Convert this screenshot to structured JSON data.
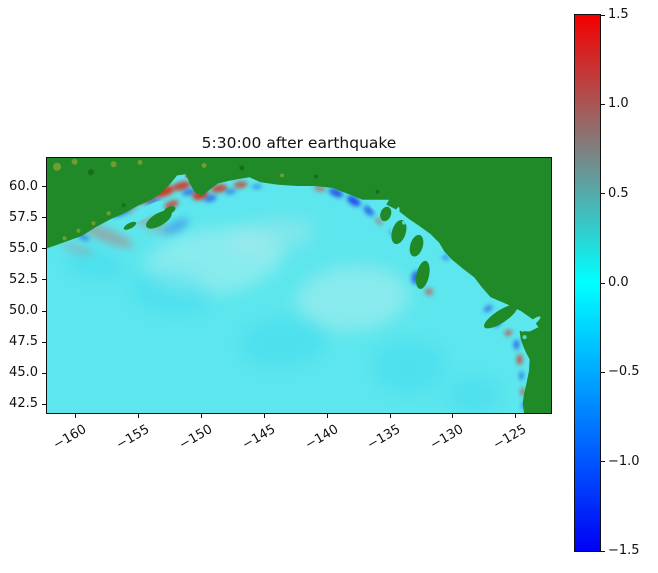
{
  "chart_data": {
    "type": "heatmap",
    "title": "5:30:00 after earthquake",
    "xlim": [
      -162.3,
      -122.2
    ],
    "ylim": [
      41.8,
      62.3
    ],
    "x_ticks": [
      {
        "v": -160,
        "label": "−160"
      },
      {
        "v": -155,
        "label": "−155"
      },
      {
        "v": -150,
        "label": "−150"
      },
      {
        "v": -145,
        "label": "−145"
      },
      {
        "v": -140,
        "label": "−140"
      },
      {
        "v": -135,
        "label": "−135"
      },
      {
        "v": -130,
        "label": "−130"
      },
      {
        "v": -125,
        "label": "−125"
      }
    ],
    "y_ticks": [
      {
        "v": 60.0,
        "label": "60.0"
      },
      {
        "v": 57.5,
        "label": "57.5"
      },
      {
        "v": 55.0,
        "label": "55.0"
      },
      {
        "v": 52.5,
        "label": "52.5"
      },
      {
        "v": 50.0,
        "label": "50.0"
      },
      {
        "v": 47.5,
        "label": "47.5"
      },
      {
        "v": 45.0,
        "label": "45.0"
      },
      {
        "v": 42.5,
        "label": "42.5"
      }
    ],
    "colorbar": {
      "vmin": -1.5,
      "vmax": 1.5,
      "ticks": [
        {
          "v": 1.5,
          "label": "1.5"
        },
        {
          "v": 1.0,
          "label": "1.0"
        },
        {
          "v": 0.5,
          "label": "0.5"
        },
        {
          "v": 0.0,
          "label": "0.0"
        },
        {
          "v": -0.5,
          "label": "−0.5"
        },
        {
          "v": -1.0,
          "label": "−1.0"
        },
        {
          "v": -1.5,
          "label": "−1.5"
        }
      ],
      "stops": [
        {
          "v": 1.5,
          "c": "#f40000"
        },
        {
          "v": 1.0,
          "c": "#aa5555"
        },
        {
          "v": 0.5,
          "c": "#55aaaa"
        },
        {
          "v": 0.0,
          "c": "#00ffff"
        },
        {
          "v": -0.5,
          "c": "#00aaff"
        },
        {
          "v": -1.0,
          "c": "#0055ff"
        },
        {
          "v": -1.5,
          "c": "#0000f4"
        }
      ]
    },
    "colors": {
      "ocean": "#5de6ed",
      "land": "#218a28",
      "positive": "#e02818",
      "negative": "#1f35e6"
    },
    "map": {
      "coastline": [
        [
          -162.3,
          62.3
        ],
        [
          -122.2,
          62.3
        ],
        [
          -122.2,
          41.8
        ],
        [
          -124.35,
          41.8
        ],
        [
          -124.45,
          42.6
        ],
        [
          -124.35,
          43.3
        ],
        [
          -124.15,
          44.2
        ],
        [
          -123.95,
          45.2
        ],
        [
          -123.9,
          46.1
        ],
        [
          -124.3,
          46.9
        ],
        [
          -124.6,
          47.7
        ],
        [
          -124.7,
          48.4
        ],
        [
          -123.9,
          48.35
        ],
        [
          -123.2,
          48.7
        ],
        [
          -123.6,
          49.3
        ],
        [
          -124.6,
          50.0
        ],
        [
          -125.7,
          50.55
        ],
        [
          -127.0,
          51.1
        ],
        [
          -127.7,
          51.9
        ],
        [
          -128.3,
          52.7
        ],
        [
          -129.2,
          53.4
        ],
        [
          -130.1,
          54.15
        ],
        [
          -130.7,
          54.8
        ],
        [
          -131.1,
          55.5
        ],
        [
          -131.8,
          56.2
        ],
        [
          -132.7,
          56.85
        ],
        [
          -133.5,
          57.4
        ],
        [
          -134.4,
          58.1
        ],
        [
          -135.3,
          58.55
        ],
        [
          -135.1,
          58.95
        ],
        [
          -136.3,
          58.95
        ],
        [
          -137.2,
          58.95
        ],
        [
          -138.3,
          59.4
        ],
        [
          -139.6,
          59.9
        ],
        [
          -141.0,
          60.05
        ],
        [
          -142.4,
          60.05
        ],
        [
          -143.9,
          60.15
        ],
        [
          -145.3,
          60.35
        ],
        [
          -146.2,
          60.75
        ],
        [
          -147.1,
          60.6
        ],
        [
          -147.9,
          60.45
        ],
        [
          -148.7,
          60.25
        ],
        [
          -149.4,
          59.7
        ],
        [
          -150.0,
          59.25
        ],
        [
          -150.55,
          59.55
        ],
        [
          -150.95,
          60.25
        ],
        [
          -151.25,
          61.0
        ],
        [
          -151.95,
          60.9
        ],
        [
          -152.55,
          60.15
        ],
        [
          -153.25,
          59.45
        ],
        [
          -154.1,
          58.9
        ],
        [
          -155.1,
          58.45
        ],
        [
          -156.2,
          57.85
        ],
        [
          -157.3,
          57.35
        ],
        [
          -158.4,
          56.75
        ],
        [
          -159.5,
          56.05
        ],
        [
          -160.6,
          55.65
        ],
        [
          -161.7,
          55.25
        ],
        [
          -162.3,
          55.05
        ]
      ],
      "water_cuts": [
        {
          "lon": -154.55,
          "lat": 57.9,
          "rx": 1.75,
          "ry": 0.4,
          "rot": -31
        },
        {
          "lon": -123.8,
          "lat": 48.95,
          "rx": 0.95,
          "ry": 0.22,
          "rot": -38
        },
        {
          "lon": -134.6,
          "lat": 57.3,
          "rx": 0.22,
          "ry": 1.1,
          "rot": 15
        },
        {
          "lon": -133.2,
          "lat": 55.9,
          "rx": 0.22,
          "ry": 0.95,
          "rot": 15
        },
        {
          "lon": -136.2,
          "lat": 58.3,
          "rx": 0.5,
          "ry": 0.18,
          "rot": 40
        }
      ],
      "islands": [
        {
          "lon": -153.4,
          "lat": 57.35,
          "rx": 1.15,
          "ry": 0.5,
          "rot": -30
        },
        {
          "lon": -152.55,
          "lat": 58.1,
          "rx": 0.5,
          "ry": 0.28,
          "rot": -25
        },
        {
          "lon": -155.7,
          "lat": 56.85,
          "rx": 0.55,
          "ry": 0.22,
          "rot": -28
        },
        {
          "lon": -134.3,
          "lat": 56.35,
          "rx": 0.55,
          "ry": 1.0,
          "rot": 17
        },
        {
          "lon": -132.9,
          "lat": 55.25,
          "rx": 0.5,
          "ry": 0.9,
          "rot": 17
        },
        {
          "lon": -135.35,
          "lat": 57.8,
          "rx": 0.42,
          "ry": 0.6,
          "rot": 20
        },
        {
          "lon": -132.4,
          "lat": 52.9,
          "rx": 0.5,
          "ry": 1.15,
          "rot": 12
        },
        {
          "lon": -126.2,
          "lat": 49.55,
          "rx": 1.55,
          "ry": 0.5,
          "rot": -33
        }
      ],
      "speckles": [
        {
          "lon": -161.5,
          "lat": 61.6,
          "r": 4,
          "c": "#7fa030"
        },
        {
          "lon": -160.1,
          "lat": 62.0,
          "r": 3,
          "c": "#7fa030"
        },
        {
          "lon": -158.8,
          "lat": 61.15,
          "r": 3,
          "c": "#14691a"
        },
        {
          "lon": -157.0,
          "lat": 61.8,
          "r": 3,
          "c": "#7fa030"
        },
        {
          "lon": -154.9,
          "lat": 61.95,
          "r": 2.5,
          "c": "#7fa030"
        },
        {
          "lon": -159.8,
          "lat": 56.45,
          "r": 2,
          "c": "#7fa030"
        },
        {
          "lon": -158.6,
          "lat": 57.05,
          "r": 2,
          "c": "#7fa030"
        },
        {
          "lon": -157.4,
          "lat": 57.85,
          "r": 2.2,
          "c": "#7fa030"
        },
        {
          "lon": -156.2,
          "lat": 58.5,
          "r": 2,
          "c": "#14691a"
        },
        {
          "lon": -160.9,
          "lat": 55.85,
          "r": 2,
          "c": "#7fa030"
        },
        {
          "lon": -149.8,
          "lat": 61.7,
          "r": 2.5,
          "c": "#7fa030"
        },
        {
          "lon": -146.8,
          "lat": 61.5,
          "r": 2.5,
          "c": "#14691a"
        },
        {
          "lon": -143.6,
          "lat": 60.9,
          "r": 2,
          "c": "#7fa030"
        },
        {
          "lon": -140.9,
          "lat": 60.8,
          "r": 2,
          "c": "#14691a"
        },
        {
          "lon": -136.0,
          "lat": 59.6,
          "r": 2,
          "c": "#14691a"
        },
        {
          "lon": -133.9,
          "lat": 57.1,
          "r": 2,
          "c": "#5de6ed"
        },
        {
          "lon": -132.4,
          "lat": 56.2,
          "r": 2,
          "c": "#5de6ed"
        },
        {
          "lon": -130.9,
          "lat": 54.6,
          "r": 2,
          "c": "#5de6ed"
        },
        {
          "lon": -129.5,
          "lat": 53.3,
          "r": 2,
          "c": "#5de6ed"
        },
        {
          "lon": -126.3,
          "lat": 50.4,
          "r": 2,
          "c": "#5de6ed"
        },
        {
          "lon": -124.3,
          "lat": 47.9,
          "r": 2,
          "c": "#5de6ed"
        }
      ],
      "features": [
        {
          "lon": -149.0,
          "lat": 54.0,
          "rx": 5.5,
          "ry": 2.6,
          "rot": -8,
          "c": "#bdf2ef",
          "o": 0.45,
          "b": 10
        },
        {
          "lon": -138.0,
          "lat": 51.0,
          "rx": 4.5,
          "ry": 2.6,
          "rot": -5,
          "c": "#c9f1ec",
          "o": 0.4,
          "b": 10
        },
        {
          "lon": -152.5,
          "lat": 51.5,
          "rx": 3.2,
          "ry": 1.7,
          "rot": 8,
          "c": "#2ad2f2",
          "o": 0.3,
          "b": 10
        },
        {
          "lon": -143.5,
          "lat": 47.5,
          "rx": 3.4,
          "ry": 2.0,
          "rot": -6,
          "c": "#2ad2f2",
          "o": 0.28,
          "b": 10
        },
        {
          "lon": -133.5,
          "lat": 45.5,
          "rx": 3.0,
          "ry": 2.2,
          "rot": 0,
          "c": "#2ad2f2",
          "o": 0.26,
          "b": 10
        },
        {
          "lon": -128.3,
          "lat": 43.2,
          "rx": 2.2,
          "ry": 1.6,
          "rot": 0,
          "c": "#2ad2f2",
          "o": 0.25,
          "b": 10
        },
        {
          "lon": -158.5,
          "lat": 53.8,
          "rx": 2.4,
          "ry": 1.2,
          "rot": 12,
          "c": "#2ad2f2",
          "o": 0.3,
          "b": 10
        },
        {
          "lon": -144.5,
          "lat": 56.0,
          "rx": 3.5,
          "ry": 1.4,
          "rot": -10,
          "c": "#aee8ea",
          "o": 0.4,
          "b": 10
        },
        {
          "lon": -157.6,
          "lat": 56.1,
          "rx": 2.3,
          "ry": 0.55,
          "rot": 22,
          "c": "#b47a78",
          "o": 0.5,
          "b": 6
        },
        {
          "lon": -154.2,
          "lat": 57.1,
          "rx": 1.7,
          "ry": 0.5,
          "rot": 26,
          "c": "#b48382",
          "o": 0.4,
          "b": 6
        },
        {
          "lon": -159.9,
          "lat": 55.0,
          "rx": 1.3,
          "ry": 0.4,
          "rot": 16,
          "c": "#b48a88",
          "o": 0.35,
          "b": 6
        },
        {
          "lon": -152.0,
          "lat": 56.8,
          "rx": 1.1,
          "ry": 0.4,
          "rot": -28,
          "c": "#1f35e6",
          "o": 0.35,
          "b": 6
        },
        {
          "lon": -159.4,
          "lat": 55.9,
          "rx": 0.5,
          "ry": 0.2,
          "rot": 20,
          "c": "#1f35e6",
          "o": 0.5,
          "b": 3
        },
        {
          "lon": -156.3,
          "lat": 58.05,
          "rx": 0.85,
          "ry": 0.3,
          "rot": -28,
          "c": "#1f35e6",
          "o": 0.7,
          "b": 3
        },
        {
          "lon": -155.6,
          "lat": 58.65,
          "rx": 0.9,
          "ry": 0.34,
          "rot": -28,
          "c": "#e02818",
          "o": 0.9,
          "b": 3
        },
        {
          "lon": -154.3,
          "lat": 59.15,
          "rx": 0.8,
          "ry": 0.38,
          "rot": -24,
          "c": "#e02818",
          "o": 0.92,
          "b": 3
        },
        {
          "lon": -153.8,
          "lat": 58.75,
          "rx": 0.6,
          "ry": 0.22,
          "rot": -24,
          "c": "#1f35e6",
          "o": 0.55,
          "b": 3
        },
        {
          "lon": -153.0,
          "lat": 59.6,
          "rx": 0.85,
          "ry": 0.4,
          "rot": -18,
          "c": "#e02818",
          "o": 0.9,
          "b": 3
        },
        {
          "lon": -152.4,
          "lat": 58.55,
          "rx": 0.6,
          "ry": 0.3,
          "rot": -24,
          "c": "#e02818",
          "o": 0.75,
          "b": 3
        },
        {
          "lon": -151.6,
          "lat": 60.05,
          "rx": 0.75,
          "ry": 0.33,
          "rot": -14,
          "c": "#e02818",
          "o": 0.85,
          "b": 3
        },
        {
          "lon": -151.0,
          "lat": 59.55,
          "rx": 0.55,
          "ry": 0.24,
          "rot": -14,
          "c": "#1f35e6",
          "o": 0.6,
          "b": 3
        },
        {
          "lon": -150.1,
          "lat": 59.35,
          "rx": 0.65,
          "ry": 0.4,
          "rot": -18,
          "c": "#e02818",
          "o": 0.9,
          "b": 3
        },
        {
          "lon": -149.3,
          "lat": 59.05,
          "rx": 0.5,
          "ry": 0.28,
          "rot": -16,
          "c": "#1f35e6",
          "o": 0.6,
          "b": 3
        },
        {
          "lon": -148.6,
          "lat": 59.85,
          "rx": 0.65,
          "ry": 0.32,
          "rot": -10,
          "c": "#e02818",
          "o": 0.8,
          "b": 3
        },
        {
          "lon": -147.7,
          "lat": 59.6,
          "rx": 0.45,
          "ry": 0.22,
          "rot": -10,
          "c": "#1f35e6",
          "o": 0.5,
          "b": 3
        },
        {
          "lon": -146.9,
          "lat": 60.15,
          "rx": 0.55,
          "ry": 0.28,
          "rot": -8,
          "c": "#e02818",
          "o": 0.7,
          "b": 3
        },
        {
          "lon": -145.6,
          "lat": 60.0,
          "rx": 0.4,
          "ry": 0.2,
          "rot": -6,
          "c": "#1f35e6",
          "o": 0.45,
          "b": 3
        },
        {
          "lon": -140.6,
          "lat": 59.85,
          "rx": 0.5,
          "ry": 0.24,
          "rot": 14,
          "c": "#e02818",
          "o": 0.5,
          "b": 3
        },
        {
          "lon": -139.3,
          "lat": 59.5,
          "rx": 0.6,
          "ry": 0.3,
          "rot": 24,
          "c": "#1f35e6",
          "o": 0.8,
          "b": 3
        },
        {
          "lon": -137.9,
          "lat": 58.85,
          "rx": 0.6,
          "ry": 0.33,
          "rot": 34,
          "c": "#1f35e6",
          "o": 0.85,
          "b": 3
        },
        {
          "lon": -136.7,
          "lat": 58.05,
          "rx": 0.5,
          "ry": 0.28,
          "rot": 44,
          "c": "#1f35e6",
          "o": 0.7,
          "b": 3
        },
        {
          "lon": -135.9,
          "lat": 57.2,
          "rx": 0.35,
          "ry": 0.2,
          "rot": 46,
          "c": "#e02818",
          "o": 0.45,
          "b": 3
        },
        {
          "lon": -134.8,
          "lat": 56.3,
          "rx": 0.3,
          "ry": 0.18,
          "rot": 46,
          "c": "#1f35e6",
          "o": 0.5,
          "b": 3
        },
        {
          "lon": -132.9,
          "lat": 52.7,
          "rx": 0.4,
          "ry": 0.55,
          "rot": 12,
          "c": "#1f35e6",
          "o": 0.7,
          "b": 3
        },
        {
          "lon": -131.9,
          "lat": 51.55,
          "rx": 0.35,
          "ry": 0.3,
          "rot": 0,
          "c": "#e02818",
          "o": 0.5,
          "b": 3
        },
        {
          "lon": -130.6,
          "lat": 54.3,
          "rx": 0.3,
          "ry": 0.2,
          "rot": 30,
          "c": "#1f35e6",
          "o": 0.5,
          "b": 3
        },
        {
          "lon": -127.2,
          "lat": 50.2,
          "rx": 0.4,
          "ry": 0.22,
          "rot": -34,
          "c": "#1f35e6",
          "o": 0.6,
          "b": 3
        },
        {
          "lon": -126.5,
          "lat": 49.0,
          "rx": 0.35,
          "ry": 0.22,
          "rot": -34,
          "c": "#1f35e6",
          "o": 0.7,
          "b": 3
        },
        {
          "lon": -125.6,
          "lat": 48.25,
          "rx": 0.3,
          "ry": 0.22,
          "rot": -30,
          "c": "#e02818",
          "o": 0.7,
          "b": 3
        },
        {
          "lon": -124.95,
          "lat": 47.3,
          "rx": 0.22,
          "ry": 0.4,
          "rot": 0,
          "c": "#1f35e6",
          "o": 0.7,
          "b": 3
        },
        {
          "lon": -124.7,
          "lat": 46.1,
          "rx": 0.22,
          "ry": 0.42,
          "rot": 0,
          "c": "#e02818",
          "o": 0.8,
          "b": 3
        },
        {
          "lon": -124.55,
          "lat": 44.8,
          "rx": 0.18,
          "ry": 0.38,
          "rot": 0,
          "c": "#1f35e6",
          "o": 0.6,
          "b": 3
        },
        {
          "lon": -124.45,
          "lat": 43.5,
          "rx": 0.18,
          "ry": 0.34,
          "rot": 0,
          "c": "#e02818",
          "o": 0.65,
          "b": 3
        },
        {
          "lon": -124.4,
          "lat": 42.4,
          "rx": 0.16,
          "ry": 0.3,
          "rot": 0,
          "c": "#1f35e6",
          "o": 0.5,
          "b": 3
        },
        {
          "lon": -151.1,
          "lat": 60.85,
          "rx": 0.22,
          "ry": 0.14,
          "rot": 0,
          "c": "#e02818",
          "o": 0.8,
          "b": 1
        },
        {
          "lon": -150.75,
          "lat": 61.3,
          "rx": 0.18,
          "ry": 0.12,
          "rot": 0,
          "c": "#e02818",
          "o": 0.7,
          "b": 1
        },
        {
          "lon": -147.6,
          "lat": 60.7,
          "rx": 0.25,
          "ry": 0.15,
          "rot": 0,
          "c": "#1f35e6",
          "o": 0.5,
          "b": 1
        }
      ]
    }
  }
}
